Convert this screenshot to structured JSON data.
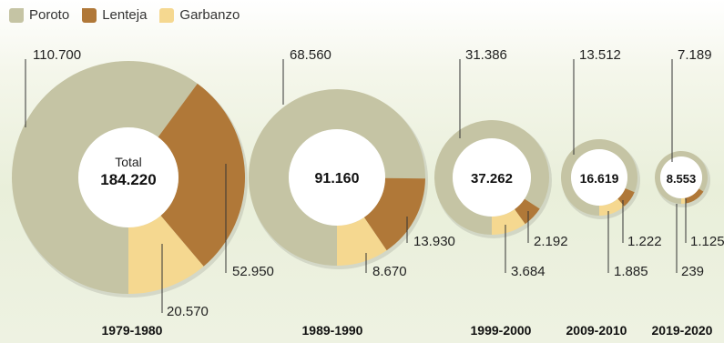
{
  "legend": [
    {
      "name": "Poroto",
      "color": "#c5c4a4"
    },
    {
      "name": "Lenteja",
      "color": "#b07838"
    },
    {
      "name": "Garbanzo",
      "color": "#f5d890"
    }
  ],
  "chart_data": {
    "type": "pie",
    "series_names": [
      "Poroto",
      "Lenteja",
      "Garbanzo"
    ],
    "total_caption": "Total",
    "charts": [
      {
        "period": "1979-1980",
        "total": "184.220",
        "values": [
          110700,
          52950,
          20570
        ],
        "labels": [
          "110.700",
          "52.950",
          "20.570"
        ]
      },
      {
        "period": "1989-1990",
        "total": "91.160",
        "values": [
          68560,
          13930,
          8670
        ],
        "labels": [
          "68.560",
          "13.930",
          "8.670"
        ]
      },
      {
        "period": "1999-2000",
        "total": "37.262",
        "values": [
          31386,
          2192,
          3684
        ],
        "labels": [
          "31.386",
          "2.192",
          "3.684"
        ]
      },
      {
        "period": "2009-2010",
        "total": "16.619",
        "values": [
          13512,
          1222,
          1885
        ],
        "labels": [
          "13.512",
          "1.222",
          "1.885"
        ]
      },
      {
        "period": "2019-2020",
        "total": "8.553",
        "values": [
          7189,
          1125,
          239
        ],
        "labels": [
          "7.189",
          "1.125",
          "239"
        ]
      }
    ]
  }
}
